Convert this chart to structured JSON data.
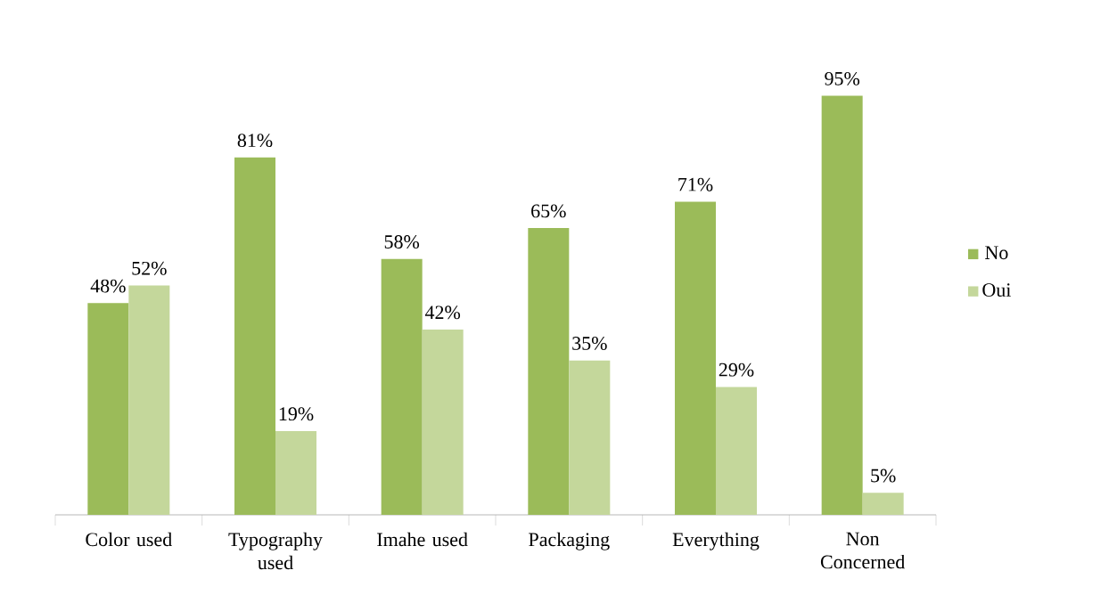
{
  "chart_data": {
    "type": "bar",
    "categories": [
      "Color used",
      "Typography used",
      "Imahe used",
      "Packaging",
      "Everything",
      "Non Concerned"
    ],
    "series": [
      {
        "name": "No",
        "color": "#9bbb59",
        "values": [
          48,
          81,
          58,
          65,
          71,
          95
        ],
        "value_labels": [
          "48%",
          "81%",
          "58%",
          "65%",
          "71%",
          "95%"
        ]
      },
      {
        "name": "Oui",
        "color": "#c4d79b",
        "values": [
          52,
          19,
          42,
          35,
          29,
          5
        ],
        "value_labels": [
          "52%",
          "19%",
          "42%",
          "35%",
          "29%",
          "5%"
        ]
      }
    ],
    "legend": "right"
  }
}
